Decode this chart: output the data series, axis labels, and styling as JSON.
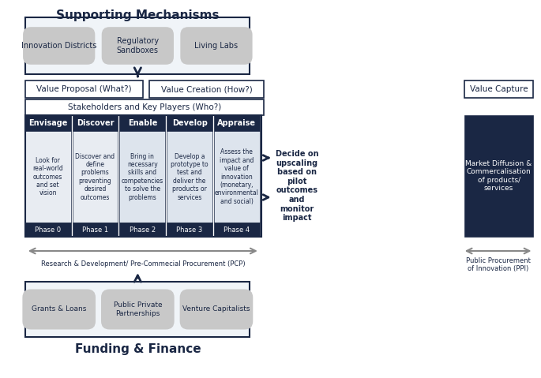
{
  "title_supporting": "Supporting Mechanisms",
  "title_funding": "Funding & Finance",
  "bg_color": "#ffffff",
  "dark_navy": "#1a2744",
  "light_blue_box": "#c5cfe0",
  "mid_blue_box": "#8fa3bf",
  "gray_pill": "#c8c8c8",
  "border_color": "#1a2744",
  "arrow_color": "#888888",
  "text_dark": "#1a2744",
  "text_white": "#ffffff",
  "supporting_pills": [
    "Innovation Districts",
    "Regulatory\nSandboxes",
    "Living Labs"
  ],
  "value_boxes": [
    "Value Proposal (What?)",
    "Value Creation (How?)"
  ],
  "stakeholders_box": "Stakeholders and Key Players (Who?)",
  "phases": [
    "Envisage",
    "Discover",
    "Enable",
    "Develop",
    "Appraise"
  ],
  "phase_labels": [
    "Phase 0",
    "Phase 1",
    "Phase 2",
    "Phase 3",
    "Phase 4"
  ],
  "phase_desc": [
    "Look for\nreal-world\noutcomes\nand set\nvision",
    "Discover and\ndefine\nproblems\npreventing\ndesired\noutcomes",
    "Bring in\nnecessary\nskills and\ncompetencies\nto solve the\nproblems",
    "Develop a\nprototype to\ntest and\ndeliver the\nproducts or\nservices",
    "Assess the\nimpact and\nvalue of\ninnovation\n(monetary,\nenvironmental\nand social)"
  ],
  "decide_text": "Decide on\nupscaling\nbased on\npilot\noutcomes\nand\nmonitor\nimpact",
  "value_capture": "Value Capture",
  "market_text": "Market Diffusion &\nCommercalisation\nof products/\nservices",
  "rnd_label": "Research & Development/ Pre-Commecial Procurement (PCP)",
  "ppi_label": "Public Procurement\nof Innovation (PPI)",
  "funding_pills": [
    "Grants & Loans",
    "Public Private\nPartnerships",
    "Venture Capitalists"
  ]
}
